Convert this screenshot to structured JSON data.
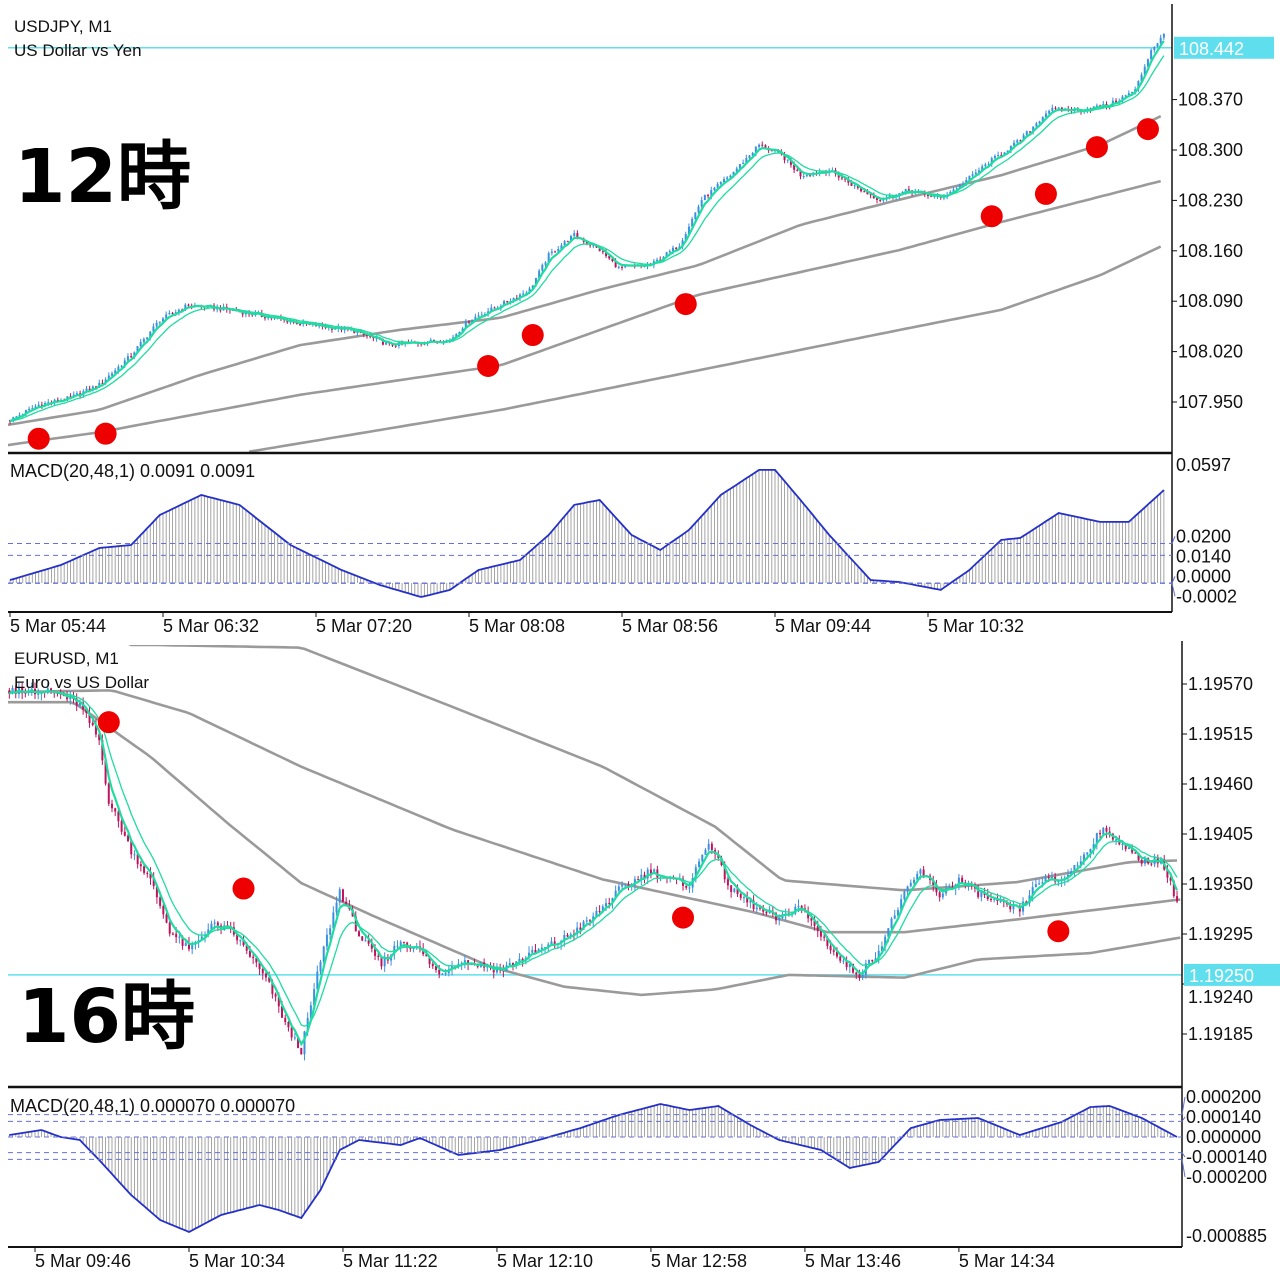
{
  "colors": {
    "up": "#3d8fe0",
    "down": "#c0125e",
    "ema": "#1fdca0",
    "ma": "#9a9a9a",
    "macd": "#2430c8",
    "hist": "#9a9a9a",
    "level": "#6670d8",
    "price_line": "#5fdfee",
    "signal_dot": "#ee0000"
  },
  "overlays": {
    "top_time": "12時",
    "bottom_time": "16時"
  },
  "chart_data": [
    {
      "type": "candlestick",
      "symbol": "USDJPY, M1",
      "description": "US Dollar vs Yen",
      "current_price": "108.442",
      "current_price_value": 108.442,
      "price_ticks": [
        {
          "v": 108.37,
          "label": "108.370"
        },
        {
          "v": 108.3,
          "label": "108.300"
        },
        {
          "v": 108.23,
          "label": "108.230"
        },
        {
          "v": 108.16,
          "label": "108.160"
        },
        {
          "v": 108.09,
          "label": "108.090"
        },
        {
          "v": 108.02,
          "label": "108.020"
        },
        {
          "v": 107.95,
          "label": "107.950"
        }
      ],
      "time_ticks": [
        {
          "t": 0,
          "label": "5 Mar 05:44"
        },
        {
          "t": 48,
          "label": "5 Mar 06:32"
        },
        {
          "t": 96,
          "label": "5 Mar 07:20"
        },
        {
          "t": 144,
          "label": "5 Mar 08:08"
        },
        {
          "t": 192,
          "label": "5 Mar 08:56"
        },
        {
          "t": 240,
          "label": "5 Mar 09:44"
        },
        {
          "t": 288,
          "label": "5 Mar 10:32"
        }
      ],
      "close": [
        [
          0,
          107.925
        ],
        [
          9,
          107.946
        ],
        [
          19,
          107.956
        ],
        [
          28,
          107.974
        ],
        [
          38,
          108.015
        ],
        [
          47,
          108.064
        ],
        [
          56,
          108.085
        ],
        [
          69,
          108.078
        ],
        [
          82,
          108.067
        ],
        [
          94,
          108.057
        ],
        [
          107,
          108.05
        ],
        [
          119,
          108.029
        ],
        [
          129,
          108.033
        ],
        [
          138,
          108.036
        ],
        [
          144,
          108.064
        ],
        [
          154,
          108.085
        ],
        [
          163,
          108.106
        ],
        [
          169,
          108.154
        ],
        [
          177,
          108.182
        ],
        [
          185,
          108.161
        ],
        [
          191,
          108.136
        ],
        [
          201,
          108.14
        ],
        [
          210,
          108.168
        ],
        [
          217,
          108.231
        ],
        [
          226,
          108.265
        ],
        [
          235,
          108.307
        ],
        [
          242,
          108.293
        ],
        [
          248,
          108.265
        ],
        [
          257,
          108.272
        ],
        [
          267,
          108.244
        ],
        [
          273,
          108.231
        ],
        [
          282,
          108.244
        ],
        [
          292,
          108.233
        ],
        [
          298,
          108.251
        ],
        [
          308,
          108.286
        ],
        [
          317,
          108.314
        ],
        [
          326,
          108.356
        ],
        [
          336,
          108.356
        ],
        [
          345,
          108.363
        ],
        [
          353,
          108.383
        ],
        [
          358,
          108.439
        ],
        [
          362,
          108.46
        ]
      ],
      "moving_averages": [
        [
          [
            -1,
            107.918
          ],
          [
            28,
            107.939
          ],
          [
            60,
            107.988
          ],
          [
            91,
            108.029
          ],
          [
            122,
            108.05
          ],
          [
            154,
            108.067
          ],
          [
            185,
            108.106
          ],
          [
            216,
            108.14
          ],
          [
            248,
            108.196
          ],
          [
            279,
            108.231
          ],
          [
            311,
            108.265
          ],
          [
            342,
            108.307
          ],
          [
            362,
            108.349
          ]
        ],
        [
          [
            -1,
            107.89
          ],
          [
            28,
            107.908
          ],
          [
            91,
            107.96
          ],
          [
            154,
            108.001
          ],
          [
            216,
            108.099
          ],
          [
            279,
            108.161
          ],
          [
            311,
            108.2
          ],
          [
            362,
            108.258
          ]
        ],
        [
          [
            75,
            107.881
          ],
          [
            154,
            107.939
          ],
          [
            216,
            107.994
          ],
          [
            279,
            108.05
          ],
          [
            311,
            108.078
          ],
          [
            342,
            108.126
          ],
          [
            362,
            108.168
          ]
        ]
      ],
      "signals": [
        [
          9,
          107.899
        ],
        [
          30,
          107.906
        ],
        [
          150,
          108.0
        ],
        [
          164,
          108.043
        ],
        [
          212,
          108.086
        ],
        [
          308,
          108.208
        ],
        [
          325,
          108.239
        ],
        [
          341,
          108.304
        ],
        [
          357,
          108.329
        ]
      ],
      "macd": {
        "label": "MACD(20,48,1) 0.0091 0.0091",
        "max_label": "0.0597",
        "max": 0.0597,
        "levels": [
          {
            "v": 0.02,
            "label": "0.0200"
          },
          {
            "v": 0.014,
            "label": "0.0140"
          },
          {
            "v": 0.0,
            "label": "0.0000"
          },
          {
            "v": -0.0002,
            "label": "-0.0002"
          }
        ],
        "values": [
          [
            0,
            0.0015
          ],
          [
            16,
            0.0091
          ],
          [
            28,
            0.0177
          ],
          [
            38,
            0.0192
          ],
          [
            47,
            0.0344
          ],
          [
            60,
            0.0445
          ],
          [
            72,
            0.0395
          ],
          [
            88,
            0.0192
          ],
          [
            104,
            0.0066
          ],
          [
            116,
            -0.001
          ],
          [
            129,
            -0.0071
          ],
          [
            138,
            -0.0035
          ],
          [
            147,
            0.0066
          ],
          [
            160,
            0.0116
          ],
          [
            169,
            0.0243
          ],
          [
            177,
            0.0395
          ],
          [
            185,
            0.042
          ],
          [
            195,
            0.0243
          ],
          [
            204,
            0.0167
          ],
          [
            213,
            0.0268
          ],
          [
            223,
            0.0445
          ],
          [
            235,
            0.0572
          ],
          [
            240,
            0.0572
          ],
          [
            248,
            0.042
          ],
          [
            257,
            0.0243
          ],
          [
            270,
            0.0015
          ],
          [
            279,
            0.0005
          ],
          [
            292,
            -0.0035
          ],
          [
            301,
            0.0066
          ],
          [
            311,
            0.0218
          ],
          [
            317,
            0.0228
          ],
          [
            329,
            0.0354
          ],
          [
            342,
            0.0309
          ],
          [
            351,
            0.0309
          ],
          [
            362,
            0.047
          ]
        ]
      }
    },
    {
      "type": "candlestick",
      "symbol": "EURUSD, M1",
      "description": "Euro vs US Dollar",
      "current_price": "1.19250",
      "current_price_value": 1.1925,
      "price_ticks": [
        {
          "v": 1.1957,
          "label": "1.19570"
        },
        {
          "v": 1.19515,
          "label": "1.19515"
        },
        {
          "v": 1.1946,
          "label": "1.19460"
        },
        {
          "v": 1.19405,
          "label": "1.19405"
        },
        {
          "v": 1.1935,
          "label": "1.19350"
        },
        {
          "v": 1.19295,
          "label": "1.19295"
        },
        {
          "v": 1.1924,
          "label": "1.19240"
        },
        {
          "v": 1.19185,
          "label": "1.19185"
        }
      ],
      "time_ticks": [
        {
          "t": 0,
          "label": "5 Mar 09:46"
        },
        {
          "t": 48,
          "label": "5 Mar 10:34"
        },
        {
          "t": 96,
          "label": "5 Mar 11:22"
        },
        {
          "t": 144,
          "label": "5 Mar 12:10"
        },
        {
          "t": 192,
          "label": "5 Mar 12:58"
        },
        {
          "t": 240,
          "label": "5 Mar 13:46"
        },
        {
          "t": 288,
          "label": "5 Mar 14:34"
        }
      ],
      "close": [
        [
          -8,
          1.19563
        ],
        [
          2,
          1.19563
        ],
        [
          8,
          1.19558
        ],
        [
          14,
          1.19547
        ],
        [
          20,
          1.19508
        ],
        [
          23,
          1.19442
        ],
        [
          30,
          1.19387
        ],
        [
          36,
          1.19354
        ],
        [
          42,
          1.19299
        ],
        [
          48,
          1.19277
        ],
        [
          55,
          1.19305
        ],
        [
          61,
          1.19299
        ],
        [
          67,
          1.19272
        ],
        [
          73,
          1.19239
        ],
        [
          79,
          1.19189
        ],
        [
          83,
          1.19167
        ],
        [
          89,
          1.19266
        ],
        [
          95,
          1.19343
        ],
        [
          101,
          1.19294
        ],
        [
          108,
          1.19261
        ],
        [
          114,
          1.19288
        ],
        [
          120,
          1.19277
        ],
        [
          126,
          1.1925
        ],
        [
          132,
          1.19266
        ],
        [
          139,
          1.19261
        ],
        [
          145,
          1.19255
        ],
        [
          154,
          1.19272
        ],
        [
          164,
          1.19288
        ],
        [
          173,
          1.1931
        ],
        [
          182,
          1.19343
        ],
        [
          192,
          1.19365
        ],
        [
          198,
          1.19354
        ],
        [
          204,
          1.19349
        ],
        [
          210,
          1.19398
        ],
        [
          217,
          1.19343
        ],
        [
          226,
          1.19321
        ],
        [
          232,
          1.1931
        ],
        [
          238,
          1.19327
        ],
        [
          245,
          1.19294
        ],
        [
          251,
          1.19266
        ],
        [
          257,
          1.1925
        ],
        [
          263,
          1.19277
        ],
        [
          270,
          1.19332
        ],
        [
          276,
          1.19365
        ],
        [
          282,
          1.19338
        ],
        [
          288,
          1.19354
        ],
        [
          295,
          1.19338
        ],
        [
          301,
          1.19327
        ],
        [
          307,
          1.19321
        ],
        [
          313,
          1.19354
        ],
        [
          320,
          1.19354
        ],
        [
          326,
          1.19376
        ],
        [
          332,
          1.19409
        ],
        [
          338,
          1.19398
        ],
        [
          344,
          1.19376
        ],
        [
          351,
          1.19376
        ],
        [
          356,
          1.19332
        ]
      ],
      "moving_averages": [
        [
          [
            0,
            1.1966
          ],
          [
            30,
            1.19613
          ],
          [
            36,
            1.19613
          ],
          [
            83,
            1.1961
          ],
          [
            130,
            1.19545
          ],
          [
            177,
            1.19479
          ],
          [
            212,
            1.19413
          ],
          [
            233,
            1.19354
          ],
          [
            271,
            1.19343
          ],
          [
            306,
            1.19352
          ],
          [
            341,
            1.19374
          ],
          [
            357,
            1.19376
          ]
        ],
        [
          [
            -11,
            1.19561
          ],
          [
            24,
            1.19563
          ],
          [
            48,
            1.19538
          ],
          [
            83,
            1.19479
          ],
          [
            130,
            1.1941
          ],
          [
            177,
            1.19355
          ],
          [
            224,
            1.19319
          ],
          [
            247,
            1.19297
          ],
          [
            271,
            1.19297
          ],
          [
            306,
            1.19311
          ],
          [
            357,
            1.19333
          ]
        ],
        [
          [
            -11,
            1.1955
          ],
          [
            12,
            1.1955
          ],
          [
            36,
            1.1949
          ],
          [
            60,
            1.19417
          ],
          [
            83,
            1.19351
          ],
          [
            106,
            1.19314
          ],
          [
            142,
            1.19259
          ],
          [
            165,
            1.19237
          ],
          [
            189,
            1.19228
          ],
          [
            212,
            1.19234
          ],
          [
            235,
            1.1925
          ],
          [
            271,
            1.19247
          ],
          [
            294,
            1.19267
          ],
          [
            329,
            1.19274
          ],
          [
            357,
            1.19291
          ]
        ]
      ],
      "signals": [
        [
          23,
          1.19528
        ],
        [
          65,
          1.19345
        ],
        [
          202,
          1.19313
        ],
        [
          319,
          1.19298
        ]
      ],
      "macd": {
        "label": "MACD(20,48,1) 0.000070 0.000070",
        "max_label": "-0.000885",
        "max": -0.000885,
        "levels": [
          {
            "v": 0.0002,
            "label": "0.000200"
          },
          {
            "v": 0.00014,
            "label": "0.000140"
          },
          {
            "v": 0.0,
            "label": "0.000000"
          },
          {
            "v": -0.00014,
            "label": "-0.000140"
          },
          {
            "v": -0.0002,
            "label": "-0.000200"
          }
        ],
        "values": [
          [
            -8,
            1.8e-05
          ],
          [
            2,
            6.3e-05
          ],
          [
            8,
            0
          ],
          [
            14,
            -2.7e-05
          ],
          [
            20,
            -0.000206
          ],
          [
            30,
            -0.000519
          ],
          [
            39,
            -0.000742
          ],
          [
            48,
            -0.000849
          ],
          [
            58,
            -0.000697
          ],
          [
            70,
            -0.000608
          ],
          [
            76,
            -0.000653
          ],
          [
            83,
            -0.000724
          ],
          [
            89,
            -0.000474
          ],
          [
            95,
            -0.000116
          ],
          [
            101,
            -2.7e-05
          ],
          [
            114,
            -7.2e-05
          ],
          [
            120,
            -9e-06
          ],
          [
            132,
            -0.000161
          ],
          [
            145,
            -0.000116
          ],
          [
            157,
            -2.7e-05
          ],
          [
            170,
            8e-05
          ],
          [
            182,
            0.000197
          ],
          [
            195,
            0.000295
          ],
          [
            204,
            0.000241
          ],
          [
            213,
            0.000277
          ],
          [
            223,
            0.000107
          ],
          [
            232,
            -2.7e-05
          ],
          [
            245,
            -0.000116
          ],
          [
            254,
            -0.000277
          ],
          [
            263,
            -0.000223
          ],
          [
            273,
            8e-05
          ],
          [
            282,
            0.000152
          ],
          [
            294,
            0.00017
          ],
          [
            307,
            1.8e-05
          ],
          [
            320,
            0.000134
          ],
          [
            329,
            0.000268
          ],
          [
            335,
            0.000277
          ],
          [
            345,
            0.00017
          ],
          [
            356,
            0
          ]
        ]
      }
    }
  ]
}
